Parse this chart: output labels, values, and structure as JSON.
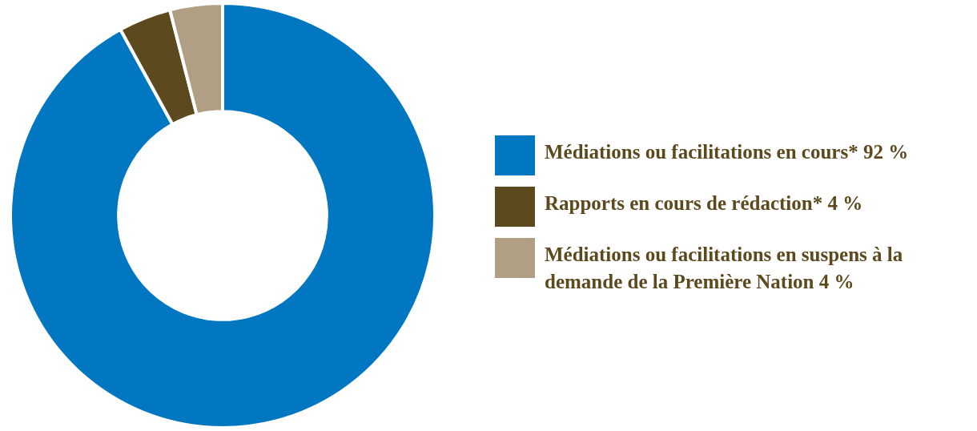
{
  "chart_data": {
    "type": "donut",
    "categories": [
      "Médiations ou facilitations en cours*",
      "Rapports en cours de rédaction*",
      "Médiations ou facilitations en suspens à la demande de la Première Nation"
    ],
    "values": [
      92,
      4,
      4
    ],
    "value_labels": [
      "92 %",
      "4 %",
      "4 %"
    ],
    "colors": [
      "#0077c0",
      "#5c4a1e",
      "#b09f84"
    ],
    "legend": "right"
  }
}
